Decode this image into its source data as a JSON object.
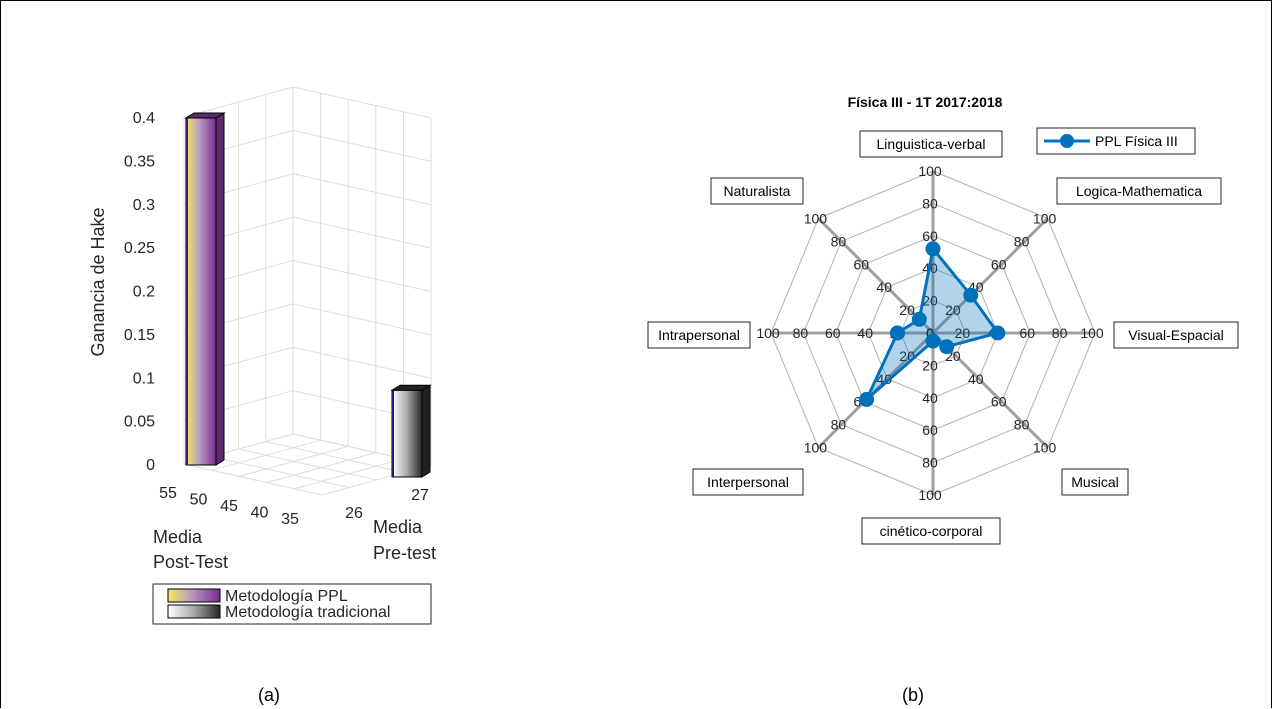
{
  "chart_data": [
    {
      "type": "bar",
      "panel_label": "(a)",
      "ylabel": "Ganancia de Hake",
      "ylim": [
        0,
        0.4
      ],
      "yticks": [
        "0",
        "0.05",
        "0.1",
        "0.15",
        "0.2",
        "0.25",
        "0.3",
        "0.35",
        "0.4"
      ],
      "grid": true,
      "axis_post": {
        "label_line1": "Media",
        "label_line2": "Post-Test",
        "ticks": [
          "55",
          "50",
          "45",
          "40",
          "35"
        ]
      },
      "axis_pre": {
        "label_line1": "Media",
        "label_line2": "Pre-test",
        "ticks": [
          "26",
          "27"
        ]
      },
      "series": [
        {
          "name": "Metodología PPL",
          "post_test_mean": 55,
          "pre_test_mean": 26,
          "value": 0.4
        },
        {
          "name": "Metodología tradicional",
          "post_test_mean": 35,
          "pre_test_mean": 27,
          "value": 0.1
        }
      ],
      "legend_position": "bottom"
    },
    {
      "type": "radar",
      "panel_label": "(b)",
      "title": "Física III - 1T 2017:2018",
      "categories": [
        "Linguistica-verbal",
        "Logica-Mathematica",
        "Visual-Espacial",
        "Musical",
        "cinético-corporal",
        "Interpersonal",
        "Intrapersonal",
        "Naturalista"
      ],
      "tick_labels": [
        "0",
        "20",
        "40",
        "60",
        "80",
        "100"
      ],
      "rlim": [
        0,
        100
      ],
      "series": [
        {
          "name": "PPL Física III",
          "values": [
            52,
            33,
            40,
            12,
            5,
            58,
            22,
            12
          ],
          "color": "#0072BD"
        }
      ],
      "legend_position": "top-right"
    }
  ]
}
